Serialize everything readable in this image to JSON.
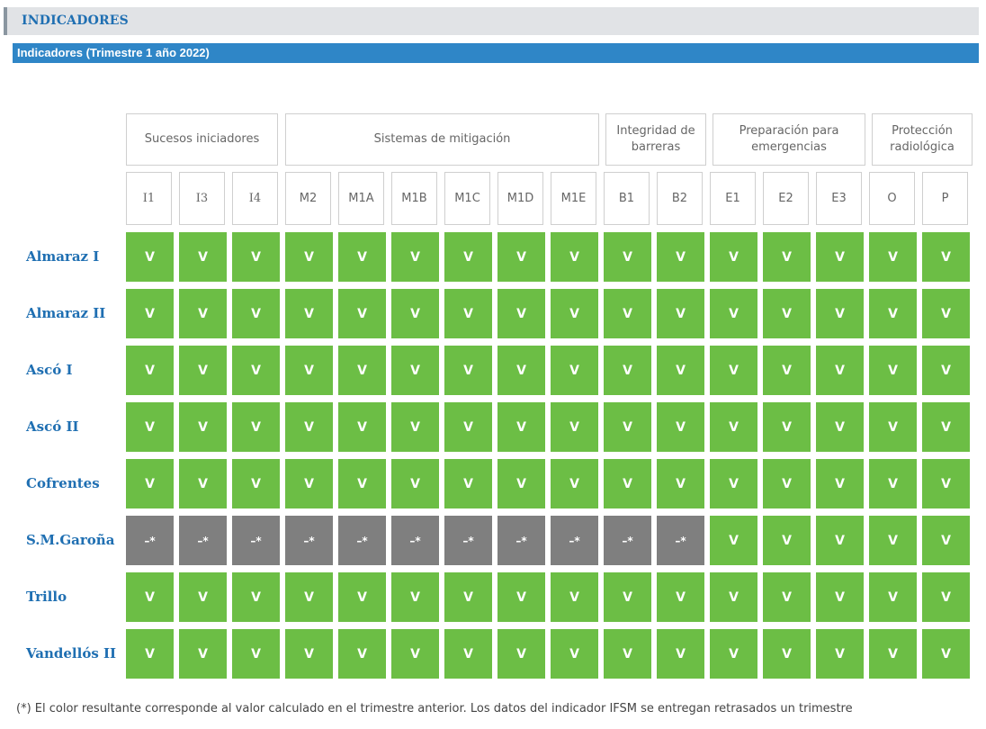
{
  "section": {
    "title": "INDICADORES"
  },
  "subheader": {
    "title": "Indicadores (Trimestre 1 año 2022)"
  },
  "groups": [
    {
      "label": "Sucesos iniciadores"
    },
    {
      "label": "Sistemas de mitigación"
    },
    {
      "label": "Integridad de barreras"
    },
    {
      "label": "Preparación para emergencias"
    },
    {
      "label": "Protección radiológica"
    }
  ],
  "codes": [
    "I1",
    "I3",
    "I4",
    "M2",
    "M1A",
    "M1B",
    "M1C",
    "M1D",
    "M1E",
    "B1",
    "B2",
    "E1",
    "E2",
    "E3",
    "O",
    "P"
  ],
  "plants": [
    {
      "name": "Almaraz I",
      "values": [
        "V",
        "V",
        "V",
        "V",
        "V",
        "V",
        "V",
        "V",
        "V",
        "V",
        "V",
        "V",
        "V",
        "V",
        "V",
        "V"
      ]
    },
    {
      "name": "Almaraz II",
      "values": [
        "V",
        "V",
        "V",
        "V",
        "V",
        "V",
        "V",
        "V",
        "V",
        "V",
        "V",
        "V",
        "V",
        "V",
        "V",
        "V"
      ]
    },
    {
      "name": "Ascó I",
      "values": [
        "V",
        "V",
        "V",
        "V",
        "V",
        "V",
        "V",
        "V",
        "V",
        "V",
        "V",
        "V",
        "V",
        "V",
        "V",
        "V"
      ]
    },
    {
      "name": "Ascó II",
      "values": [
        "V",
        "V",
        "V",
        "V",
        "V",
        "V",
        "V",
        "V",
        "V",
        "V",
        "V",
        "V",
        "V",
        "V",
        "V",
        "V"
      ]
    },
    {
      "name": "Cofrentes",
      "values": [
        "V",
        "V",
        "V",
        "V",
        "V",
        "V",
        "V",
        "V",
        "V",
        "V",
        "V",
        "V",
        "V",
        "V",
        "V",
        "V"
      ]
    },
    {
      "name": "S.M.Garoña",
      "values": [
        "–*",
        "–*",
        "–*",
        "–*",
        "–*",
        "–*",
        "–*",
        "–*",
        "–*",
        "–*",
        "–*",
        "V",
        "V",
        "V",
        "V",
        "V"
      ]
    },
    {
      "name": "Trillo",
      "values": [
        "V",
        "V",
        "V",
        "V",
        "V",
        "V",
        "V",
        "V",
        "V",
        "V",
        "V",
        "V",
        "V",
        "V",
        "V",
        "V"
      ]
    },
    {
      "name": "Vandellós II",
      "values": [
        "V",
        "V",
        "V",
        "V",
        "V",
        "V",
        "V",
        "V",
        "V",
        "V",
        "V",
        "V",
        "V",
        "V",
        "V",
        "V"
      ]
    }
  ],
  "colors": {
    "green": "#6cbe45",
    "grey": "#7f7f7f",
    "link": "#1f6fb2",
    "bar": "#2f86c7"
  },
  "footnote": "(*) El color resultante corresponde al valor calculado en el trimestre anterior. Los datos del indicador IFSM se entregan retrasados un trimestre"
}
